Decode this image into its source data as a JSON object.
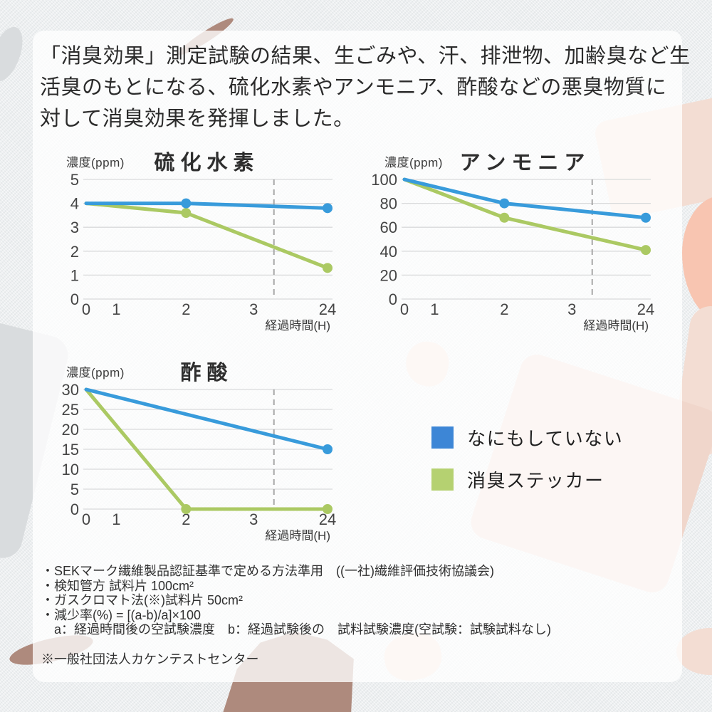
{
  "palette": {
    "card_white": "rgba(255,255,255,0.78)",
    "bg": "#edeff0",
    "blue_line": "#389bdb",
    "green_line": "#abc963",
    "legend_blue": "#3d86d6",
    "legend_green": "#b5d171",
    "peach": "#f8c5b1",
    "pale_pink": "#f3ddd3",
    "pale_pink_2": "#f0d6cb",
    "mauve": "#ae8a7d",
    "gray_shape": "#d9dcde",
    "grid": "#d9dadb",
    "dashed": "#a8a8a8"
  },
  "header": {
    "lines": [
      "「消臭効果」測定試験の結果、生ごみや、汗、排泄物、加齢臭など生",
      "活臭のもとになる、硫化水素やアンモニア、酢酸などの悪臭物質に",
      "対して消臭効果を発揮しました。"
    ]
  },
  "chart_data": [
    {
      "type": "line",
      "title": "硫化水素",
      "ylabel": "濃度(ppm)",
      "xlabel": "経過時間(H)",
      "x_ticks": [
        "0",
        "1",
        "2",
        "3",
        "24"
      ],
      "x_tick_pos": [
        0,
        0.125,
        0.414,
        0.694,
        1
      ],
      "x_values_hours": [
        0,
        1,
        2,
        3,
        24
      ],
      "ylim": [
        0,
        5
      ],
      "y_ticks": [
        5,
        4,
        3,
        2,
        1,
        0
      ],
      "dashed_x_pos": 0.778,
      "grid": true,
      "series": [
        {
          "name": "なにもしていない",
          "color": "#389bdb",
          "x": [
            0,
            2,
            24
          ],
          "x_pos": [
            0,
            0.414,
            1
          ],
          "values": [
            4,
            4,
            3.8
          ],
          "dots": [
            false,
            true,
            true
          ]
        },
        {
          "name": "消臭ステッカー",
          "color": "#abc963",
          "x": [
            0,
            2,
            24
          ],
          "x_pos": [
            0,
            0.414,
            1
          ],
          "values": [
            4,
            3.6,
            1.3
          ],
          "dots": [
            false,
            true,
            true
          ]
        }
      ]
    },
    {
      "type": "line",
      "title": "アンモニア",
      "ylabel": "濃度(ppm)",
      "xlabel": "経過時間(H)",
      "x_ticks": [
        "0",
        "1",
        "2",
        "3",
        "24"
      ],
      "x_tick_pos": [
        0,
        0.125,
        0.414,
        0.694,
        1
      ],
      "x_values_hours": [
        0,
        1,
        2,
        3,
        24
      ],
      "ylim": [
        0,
        100
      ],
      "y_ticks": [
        100,
        80,
        60,
        40,
        20,
        0
      ],
      "dashed_x_pos": 0.778,
      "grid": true,
      "series": [
        {
          "name": "なにもしていない",
          "color": "#389bdb",
          "x": [
            0,
            2,
            24
          ],
          "x_pos": [
            0,
            0.414,
            1
          ],
          "values": [
            100,
            80,
            68
          ],
          "dots": [
            false,
            true,
            true
          ]
        },
        {
          "name": "消臭ステッカー",
          "color": "#abc963",
          "x": [
            0,
            2,
            24
          ],
          "x_pos": [
            0,
            0.414,
            1
          ],
          "values": [
            100,
            68,
            41
          ],
          "dots": [
            false,
            true,
            true
          ]
        }
      ]
    },
    {
      "type": "line",
      "title": "酢酸",
      "ylabel": "濃度(ppm)",
      "xlabel": "経過時間(H)",
      "x_ticks": [
        "0",
        "1",
        "2",
        "3",
        "24"
      ],
      "x_tick_pos": [
        0,
        0.125,
        0.414,
        0.694,
        1
      ],
      "x_values_hours": [
        0,
        1,
        2,
        3,
        24
      ],
      "ylim": [
        0,
        30
      ],
      "y_ticks": [
        30,
        25,
        20,
        15,
        10,
        5,
        0
      ],
      "dashed_x_pos": 0.778,
      "grid": true,
      "series": [
        {
          "name": "なにもしていない",
          "color": "#389bdb",
          "x": [
            0,
            24
          ],
          "x_pos": [
            0,
            1
          ],
          "values": [
            30,
            15
          ],
          "dots": [
            false,
            true
          ]
        },
        {
          "name": "消臭ステッカー",
          "color": "#abc963",
          "x": [
            0,
            2,
            24
          ],
          "x_pos": [
            0,
            0.414,
            1
          ],
          "values": [
            30,
            0,
            0
          ],
          "dots": [
            false,
            true,
            true
          ]
        }
      ]
    }
  ],
  "legend": {
    "items": [
      {
        "label": "なにもしていない",
        "color": "#3d86d6"
      },
      {
        "label": "消臭ステッカー",
        "color": "#b5d171"
      }
    ]
  },
  "footnotes": {
    "lines": [
      "・SEKマーク繊維製品認証基準で定める方法準用　((一社)繊維評価技術協議会)",
      "・検知管方 試料片 100cm²",
      "・ガスクロマト法(※)試料片 50cm²",
      "・減少率(%) = [(a-b)/a]×100",
      "　a：経過時間後の空試験濃度　b：経過試験後の　試料試験濃度(空試験：試験試料なし)"
    ],
    "note": "※一般社団法人カケンテストセンター"
  }
}
